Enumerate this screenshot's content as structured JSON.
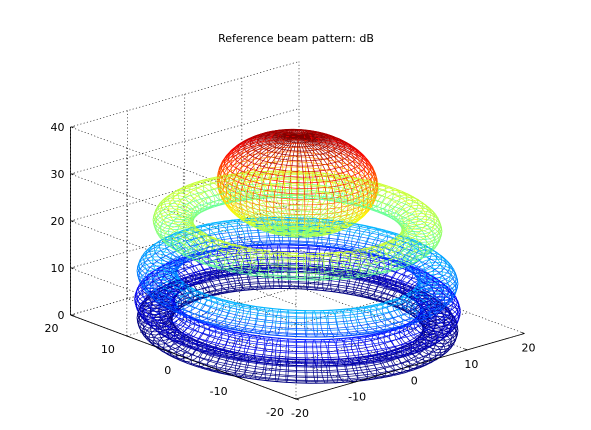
{
  "chart_data": {
    "type": "surface",
    "title": "Reference beam pattern: dB",
    "xlabel": "",
    "ylabel": "",
    "zlabel": "",
    "xlim": [
      -20,
      20
    ],
    "ylim": [
      -20,
      20
    ],
    "zlim": [
      0,
      40
    ],
    "x_ticks": [
      "-20",
      "-10",
      "0",
      "10",
      "20"
    ],
    "y_ticks": [
      "-20",
      "-10",
      "0",
      "10",
      "20"
    ],
    "z_ticks": [
      "0",
      "10",
      "20",
      "30",
      "40"
    ],
    "grid": true,
    "colormap": "jet",
    "main_lobe": {
      "radius": 10,
      "center_z": 30,
      "peak_z": 40
    },
    "side_lobes": [
      {
        "radius": 15.5,
        "tube_radius": 2.5,
        "center_z": 21
      },
      {
        "radius": 17.5,
        "tube_radius": 2.5,
        "center_z": 10
      },
      {
        "radius": 17.8,
        "tube_radius": 2.5,
        "center_z": 4
      },
      {
        "radius": 17.8,
        "tube_radius": 2.2,
        "center_z": 0
      }
    ]
  }
}
